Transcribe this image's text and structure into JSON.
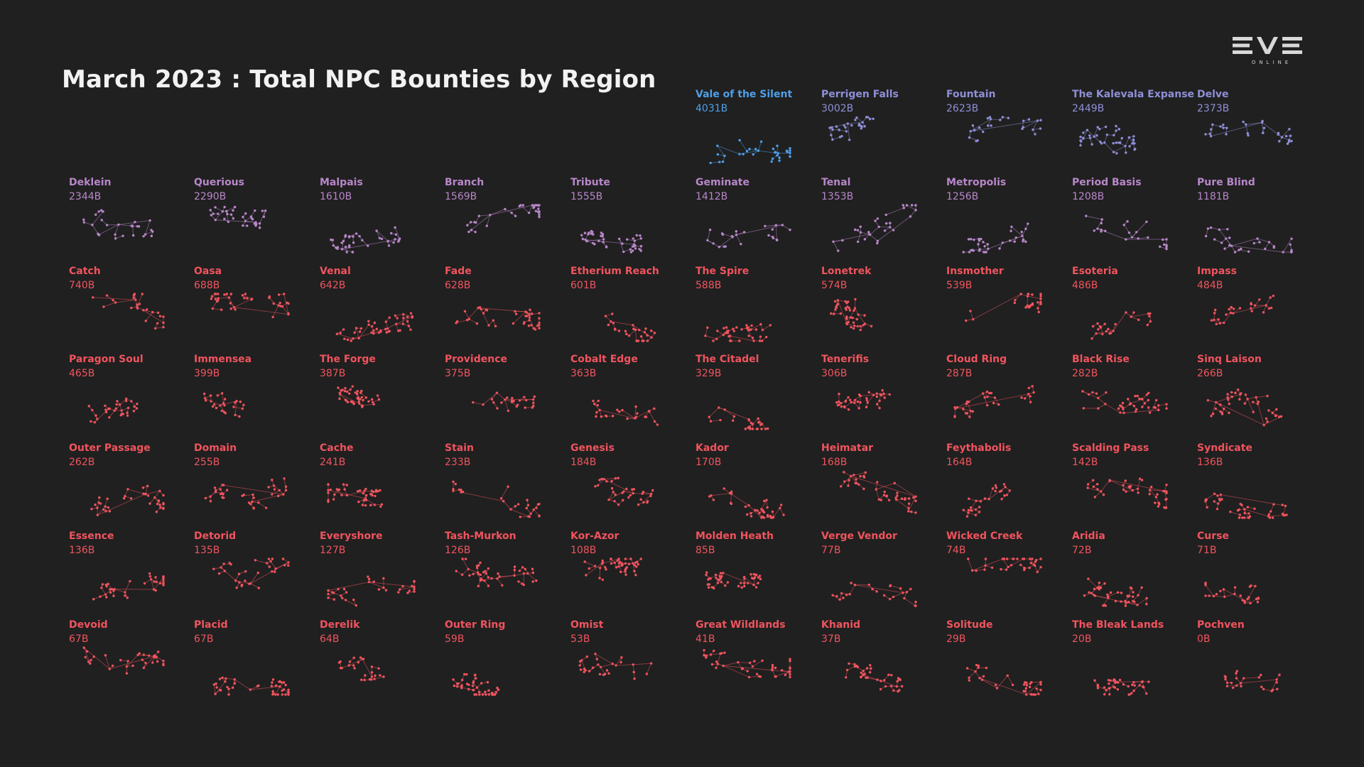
{
  "title": "March 2023 : Total NPC Bounties by Region",
  "logo": {
    "text": "EVE",
    "subtext": "ONLINE"
  },
  "colors": {
    "background": "#202020",
    "title": "#f2f2f2",
    "top_region": "#4e9fea",
    "tier_blue_purple": "#8f8fd8",
    "tier_purple": "#b887c9",
    "tier_red": "#f0545e"
  },
  "chart_data": {
    "type": "small-multiples",
    "title": "March 2023 : Total NPC Bounties by Region",
    "unit": "B",
    "regions": [
      {
        "name": "Vale of the Silent",
        "value": "4031B"
      },
      {
        "name": "Perrigen Falls",
        "value": "3002B"
      },
      {
        "name": "Fountain",
        "value": "2623B"
      },
      {
        "name": "The Kalevala Expanse",
        "value": "2449B"
      },
      {
        "name": "Delve",
        "value": "2373B"
      },
      {
        "name": "Deklein",
        "value": "2344B"
      },
      {
        "name": "Querious",
        "value": "2290B"
      },
      {
        "name": "Malpais",
        "value": "1610B"
      },
      {
        "name": "Branch",
        "value": "1569B"
      },
      {
        "name": "Tribute",
        "value": "1555B"
      },
      {
        "name": "Geminate",
        "value": "1412B"
      },
      {
        "name": "Tenal",
        "value": "1353B"
      },
      {
        "name": "Metropolis",
        "value": "1256B"
      },
      {
        "name": "Period Basis",
        "value": "1208B"
      },
      {
        "name": "Pure Blind",
        "value": "1181B"
      },
      {
        "name": "Catch",
        "value": "740B"
      },
      {
        "name": "Oasa",
        "value": "688B"
      },
      {
        "name": "Venal",
        "value": "642B"
      },
      {
        "name": "Fade",
        "value": "628B"
      },
      {
        "name": "Etherium Reach",
        "value": "601B"
      },
      {
        "name": "The Spire",
        "value": "588B"
      },
      {
        "name": "Lonetrek",
        "value": "574B"
      },
      {
        "name": "Insmother",
        "value": "539B"
      },
      {
        "name": "Esoteria",
        "value": "486B"
      },
      {
        "name": "Impass",
        "value": "484B"
      },
      {
        "name": "Paragon Soul",
        "value": "465B"
      },
      {
        "name": "Immensea",
        "value": "399B"
      },
      {
        "name": "The Forge",
        "value": "387B"
      },
      {
        "name": "Providence",
        "value": "375B"
      },
      {
        "name": "Cobalt Edge",
        "value": "363B"
      },
      {
        "name": "The Citadel",
        "value": "329B"
      },
      {
        "name": "Tenerifis",
        "value": "306B"
      },
      {
        "name": "Cloud Ring",
        "value": "287B"
      },
      {
        "name": "Black Rise",
        "value": "282B"
      },
      {
        "name": "Sinq Laison",
        "value": "266B"
      },
      {
        "name": "Outer Passage",
        "value": "262B"
      },
      {
        "name": "Domain",
        "value": "255B"
      },
      {
        "name": "Cache",
        "value": "241B"
      },
      {
        "name": "Stain",
        "value": "233B"
      },
      {
        "name": "Genesis",
        "value": "184B"
      },
      {
        "name": "Kador",
        "value": "170B"
      },
      {
        "name": "Heimatar",
        "value": "168B"
      },
      {
        "name": "Feythabolis",
        "value": "164B"
      },
      {
        "name": "Scalding Pass",
        "value": "142B"
      },
      {
        "name": "Syndicate",
        "value": "136B"
      },
      {
        "name": "Essence",
        "value": "136B"
      },
      {
        "name": "Detorid",
        "value": "135B"
      },
      {
        "name": "Everyshore",
        "value": "127B"
      },
      {
        "name": "Tash-Murkon",
        "value": "126B"
      },
      {
        "name": "Kor-Azor",
        "value": "108B"
      },
      {
        "name": "Molden Heath",
        "value": "85B"
      },
      {
        "name": "Verge Vendor",
        "value": "77B"
      },
      {
        "name": "Wicked Creek",
        "value": "74B"
      },
      {
        "name": "Aridia",
        "value": "72B"
      },
      {
        "name": "Curse",
        "value": "71B"
      },
      {
        "name": "Devoid",
        "value": "67B"
      },
      {
        "name": "Placid",
        "value": "67B"
      },
      {
        "name": "Derelik",
        "value": "64B"
      },
      {
        "name": "Outer Ring",
        "value": "59B"
      },
      {
        "name": "Omist",
        "value": "53B"
      },
      {
        "name": "Great Wildlands",
        "value": "41B"
      },
      {
        "name": "Khanid",
        "value": "37B"
      },
      {
        "name": "Solitude",
        "value": "29B"
      },
      {
        "name": "The Bleak Lands",
        "value": "20B"
      },
      {
        "name": "Pochven",
        "value": "0B"
      }
    ]
  }
}
